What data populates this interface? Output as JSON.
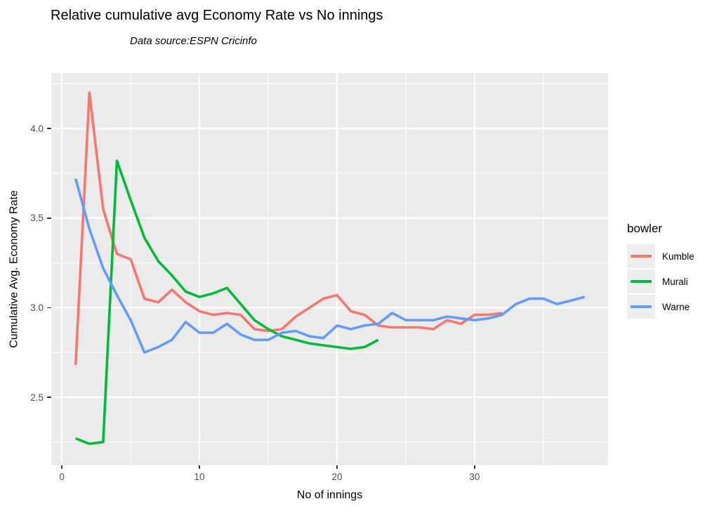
{
  "chart_data": {
    "type": "line",
    "title": "Relative cumulative avg Economy Rate vs No innings",
    "subtitle": "Data source:ESPN Cricinfo",
    "xlabel": "No of innings",
    "ylabel": "Cumulative Avg. Economy Rate",
    "legend_title": "bowler",
    "legend_position": "right",
    "grid": true,
    "xlim": [
      -0.77,
      39.7
    ],
    "ylim": [
      2.12,
      4.31
    ],
    "x_major_ticks": [
      0,
      10,
      20,
      30
    ],
    "x_tick_labels": [
      "0",
      "10",
      "20",
      "30"
    ],
    "x_minor_ticks": [
      5,
      15,
      25,
      35
    ],
    "y_major_ticks": [
      2.5,
      3.0,
      3.5,
      4.0
    ],
    "y_tick_labels": [
      "2.5",
      "3.0",
      "3.5",
      "4.0"
    ],
    "y_minor_ticks": [
      2.25,
      2.75,
      3.25,
      3.75,
      4.25
    ],
    "x_start": 1,
    "x_step": 1,
    "series": [
      {
        "name": "Kumble",
        "color": "#F8766D",
        "values": [
          2.68,
          4.2,
          3.55,
          3.3,
          3.27,
          3.05,
          3.03,
          3.1,
          3.03,
          2.98,
          2.96,
          2.97,
          2.96,
          2.88,
          2.87,
          2.88,
          2.95,
          3.0,
          3.05,
          3.07,
          2.98,
          2.96,
          2.9,
          2.89,
          2.89,
          2.89,
          2.88,
          2.93,
          2.91,
          2.96,
          2.96,
          2.97
        ]
      },
      {
        "name": "Murali",
        "color": "#00BA38",
        "values": [
          2.27,
          2.24,
          2.25,
          3.82,
          3.6,
          3.39,
          3.26,
          3.18,
          3.09,
          3.06,
          3.08,
          3.11,
          3.02,
          2.93,
          2.88,
          2.84,
          2.82,
          2.8,
          2.79,
          2.78,
          2.77,
          2.78,
          2.82
        ]
      },
      {
        "name": "Warne",
        "color": "#619CFF",
        "values": [
          3.72,
          3.44,
          3.22,
          3.07,
          2.93,
          2.75,
          2.78,
          2.82,
          2.92,
          2.86,
          2.86,
          2.91,
          2.85,
          2.82,
          2.82,
          2.86,
          2.87,
          2.84,
          2.83,
          2.9,
          2.88,
          2.9,
          2.91,
          2.97,
          2.93,
          2.93,
          2.93,
          2.95,
          2.94,
          2.93,
          2.94,
          2.96,
          3.02,
          3.05,
          3.05,
          3.02,
          3.04,
          3.06
        ]
      }
    ]
  },
  "colors": {
    "panel_background": "#EBEBEB",
    "gridline": "#FFFFFF",
    "tick_text": "#4D4D4D",
    "tick_mark": "#333333",
    "legend_key_background": "#EDEDED",
    "kumble": "#F8766D",
    "murali": "#00BA38",
    "warne": "#619CFF"
  }
}
